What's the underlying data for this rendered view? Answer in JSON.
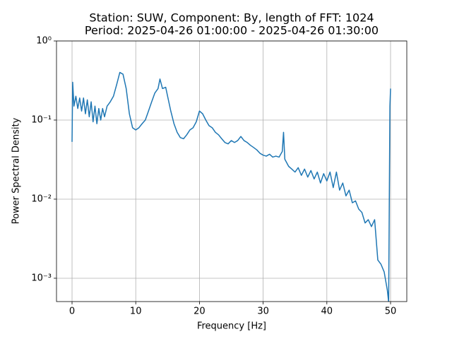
{
  "chart_data": {
    "type": "line",
    "title": [
      "Station: SUW, Component: By, length of FFT: 1024",
      "Period: 2025-04-26 01:00:00 - 2025-04-26 01:30:00"
    ],
    "x_label": "Frequency [Hz]",
    "y_label": "Power Spectral Density",
    "log_y": true,
    "grid": true,
    "xlim": [
      -2.44,
      52.55
    ],
    "ylim": [
      0.000507,
      1
    ],
    "xticks": [
      0,
      10,
      20,
      30,
      40,
      50
    ],
    "yticks": [
      {
        "value": 0.001,
        "label": "10⁻³"
      },
      {
        "value": 0.01,
        "label": "10⁻²"
      },
      {
        "value": 0.1,
        "label": "10⁻¹"
      },
      {
        "value": 1,
        "label": "10⁰"
      }
    ],
    "series": [
      {
        "color": "#1f77b4",
        "x": [
          0,
          0.1,
          0.3,
          0.6,
          0.9,
          1.2,
          1.5,
          1.8,
          2.1,
          2.4,
          2.7,
          3.0,
          3.3,
          3.6,
          3.9,
          4.2,
          4.5,
          4.8,
          5.1,
          5.5,
          6.0,
          6.5,
          7.0,
          7.5,
          8.0,
          8.5,
          9.0,
          9.5,
          10.0,
          10.5,
          11.0,
          11.5,
          12.0,
          12.5,
          13.0,
          13.5,
          13.8,
          14.2,
          14.7,
          15.0,
          15.5,
          16.0,
          16.5,
          17.0,
          17.5,
          18.0,
          18.5,
          19.0,
          19.5,
          20.0,
          20.5,
          21.0,
          21.5,
          22.0,
          22.5,
          23.0,
          23.5,
          24.0,
          24.5,
          25.0,
          25.5,
          26.0,
          26.5,
          27.0,
          27.5,
          28.0,
          28.5,
          29.0,
          29.5,
          30.0,
          30.5,
          31.0,
          31.5,
          32.0,
          32.5,
          33.0,
          33.2,
          33.4,
          34.0,
          34.5,
          35.0,
          35.5,
          36.0,
          36.5,
          37.0,
          37.5,
          38.0,
          38.5,
          39.0,
          39.5,
          40.0,
          40.5,
          41.0,
          41.5,
          42.0,
          42.5,
          43.0,
          43.5,
          44.0,
          44.5,
          45.0,
          45.5,
          46.0,
          46.5,
          47.0,
          47.5,
          48.0,
          48.5,
          49.0,
          49.5,
          49.7,
          49.9,
          50.0
        ],
        "values": [
          0.053,
          0.3,
          0.15,
          0.2,
          0.14,
          0.19,
          0.13,
          0.19,
          0.12,
          0.18,
          0.11,
          0.17,
          0.095,
          0.15,
          0.09,
          0.14,
          0.1,
          0.14,
          0.11,
          0.15,
          0.17,
          0.2,
          0.28,
          0.4,
          0.38,
          0.25,
          0.12,
          0.08,
          0.075,
          0.08,
          0.09,
          0.1,
          0.13,
          0.17,
          0.22,
          0.25,
          0.33,
          0.25,
          0.26,
          0.2,
          0.13,
          0.09,
          0.07,
          0.06,
          0.058,
          0.065,
          0.075,
          0.08,
          0.095,
          0.13,
          0.12,
          0.1,
          0.085,
          0.08,
          0.07,
          0.065,
          0.058,
          0.052,
          0.05,
          0.055,
          0.052,
          0.055,
          0.062,
          0.055,
          0.052,
          0.048,
          0.045,
          0.042,
          0.038,
          0.036,
          0.035,
          0.037,
          0.034,
          0.035,
          0.034,
          0.04,
          0.07,
          0.032,
          0.026,
          0.024,
          0.022,
          0.025,
          0.02,
          0.024,
          0.019,
          0.023,
          0.018,
          0.022,
          0.016,
          0.021,
          0.017,
          0.022,
          0.014,
          0.022,
          0.013,
          0.016,
          0.011,
          0.013,
          0.009,
          0.0095,
          0.0075,
          0.0068,
          0.005,
          0.0055,
          0.0045,
          0.0055,
          0.0017,
          0.0015,
          0.0012,
          0.0007,
          0.0005,
          0.15,
          0.25
        ]
      }
    ]
  }
}
